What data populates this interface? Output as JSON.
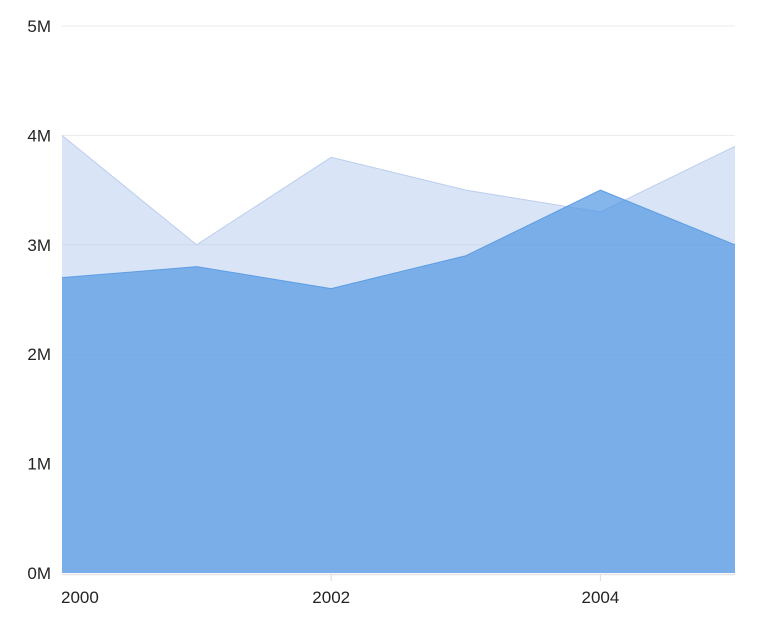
{
  "chart_data": {
    "type": "area",
    "title": "",
    "xlabel": "",
    "ylabel": "",
    "y_unit": "M (millions)",
    "x": [
      2000,
      2001,
      2002,
      2003,
      2004,
      2005
    ],
    "xlim": [
      2000,
      2005
    ],
    "ylim": [
      0,
      5
    ],
    "y_ticks": [
      0,
      1,
      2,
      3,
      4,
      5
    ],
    "y_tick_labels": [
      "0M",
      "1M",
      "2M",
      "3M",
      "4M",
      "5M"
    ],
    "x_ticks": [
      2000,
      2002,
      2004
    ],
    "x_tick_labels": [
      "2000",
      "2002",
      "2004"
    ],
    "grid": true,
    "legend": "none",
    "series": [
      {
        "name": "series-background-light",
        "values": [
          4.0,
          3.0,
          3.8,
          3.5,
          3.3,
          3.9
        ],
        "fill": "rgba(184,203,239,0.52)",
        "stroke": "rgba(184,203,239,0.95)"
      },
      {
        "name": "series-foreground-dark",
        "values": [
          2.7,
          2.8,
          2.6,
          2.9,
          3.5,
          3.0
        ],
        "fill": "rgba(84,153,227,0.72)",
        "stroke": "rgba(84,153,227,0.9)"
      }
    ]
  },
  "style": {
    "background": "#ffffff",
    "axis_label_color": "#252423",
    "gridline_color": "#ebebeb",
    "tick_color": "#dcdcdc",
    "axis_line_color": "#e5e5e5"
  }
}
